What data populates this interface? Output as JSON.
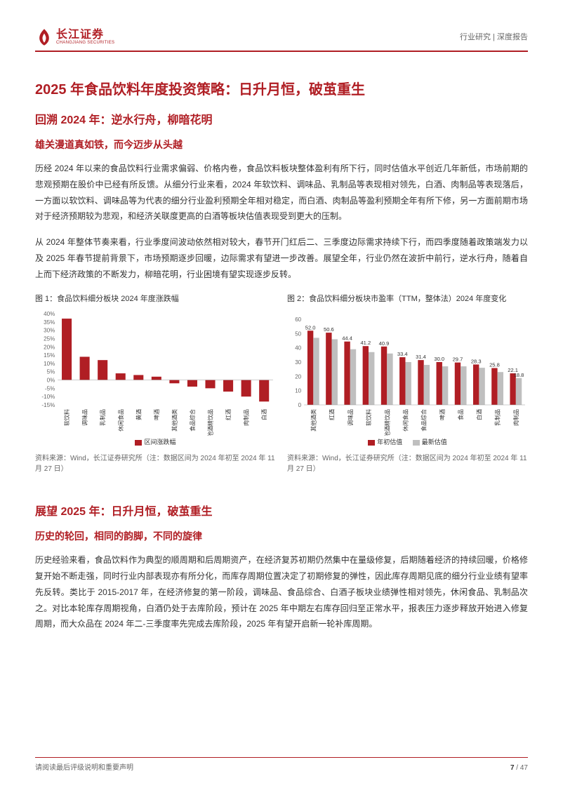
{
  "header": {
    "logo_cn": "长江证券",
    "logo_en": "CHANGJIANG SECURITIES",
    "right": "行业研究 | 深度报告"
  },
  "title_main": "2025 年食品饮料年度投资策略：日升月恒，破茧重生",
  "section1": {
    "sub1": "回溯 2024 年：逆水行舟，柳暗花明",
    "sub2": "雄关漫道真如铁，而今迈步从头越",
    "para1": "历经 2024 年以来的食品饮料行业需求偏弱、价格内卷，食品饮料板块整体盈利有所下行，同时估值水平创近几年新低，市场前期的悲观预期在股价中已经有所反馈。从细分行业来看，2024 年软饮料、调味品、乳制品等表现相对领先，白酒、肉制品等表现落后，一方面以软饮料、调味品等为代表的细分行业盈利预期全年相对稳定，而白酒、肉制品等盈利预期全年有所下修，另一方面前期市场对于经济预期较为悲观，和经济关联度更高的白酒等板块估值表现受到更大的压制。",
    "para2": "从 2024 年整体节奏来看，行业季度间波动依然相对较大，春节开门红后二、三季度边际需求持续下行，而四季度随着政策端发力以及 2025 年春节提前背景下，市场预期逐步回暖，边际需求有望进一步改善。展望全年，行业仍然在波折中前行，逆水行舟，随着自上而下经济政策的不断发力，柳暗花明，行业困境有望实现逐步反转。"
  },
  "chart1": {
    "title": "图 1：食品饮料细分板块 2024 年度涨跌幅",
    "type": "bar",
    "categories": [
      "软饮料",
      "调味品",
      "乳制品",
      "休闲食品",
      "黄酒",
      "啤酒",
      "其他酒类",
      "食品综合",
      "其他酒精饮品",
      "红酒",
      "肉制品",
      "白酒"
    ],
    "values": [
      37,
      14,
      12,
      4,
      3,
      2,
      -2,
      -4,
      -5,
      -7,
      -10,
      -13
    ],
    "ylim": [
      -15,
      40
    ],
    "ytick_step": 5,
    "bar_color": "#b01e24",
    "legend": "区间涨跌幅",
    "source": "资料来源：Wind，长江证券研究所（注：数据区间为 2024 年初至 2024 年 11 月 27 日）"
  },
  "chart2": {
    "title": "图 2：食品饮料细分板块市盈率（TTM，整体法）2024 年度变化",
    "type": "grouped-bar",
    "categories": [
      "其他酒类",
      "红酒",
      "调味品",
      "软饮料",
      "其他酒精饮品",
      "休闲食品",
      "食品综合",
      "啤酒",
      "食品",
      "白酒",
      "乳制品",
      "肉制品"
    ],
    "series": [
      {
        "name": "年初估值",
        "color": "#b01e24",
        "values": [
          52.0,
          50.6,
          44.4,
          41.2,
          40.9,
          33.4,
          31.4,
          30.0,
          29.7,
          28.3,
          25.8,
          22.1
        ]
      },
      {
        "name": "最新估值",
        "color": "#bfbfbf",
        "values": [
          47,
          46,
          39,
          37,
          36,
          30,
          28,
          27,
          27,
          26,
          23,
          18.8
        ]
      }
    ],
    "ylim": [
      0,
      60
    ],
    "ytick_step": 10,
    "source": "资料来源：Wind，长江证券研究所（注：数据区间为 2024 年初至 2024 年 11 月 27 日）"
  },
  "section2": {
    "sub1": "展望 2025 年：日升月恒，破茧重生",
    "sub2": "历史的轮回，相同的韵脚，不同的旋律",
    "para1": "历史经验来看，食品饮料作为典型的顺周期和后周期资产，在经济复苏初期仍然集中在量级修复，后期随着经济的持续回暖，价格修复开始不断走强，同时行业内部表现亦有所分化，而库存周期位置决定了初期修复的弹性，因此库存周期见底的细分行业业绩有望率先反转。类比于 2015-2017 年，在经济修复的第一阶段，调味品、食品综合、白酒子板块业绩弹性相对领先，休闲食品、乳制品次之。对比本轮库存周期视角，白酒仍处于去库阶段，预计在 2025 年中期左右库存回归至正常水平，报表压力逐步释放开始进入修复周期，而大众品在 2024 年二-三季度率先完成去库阶段，2025 年有望开启新一轮补库周期。"
  },
  "footer": {
    "left": "请阅读最后评级说明和重要声明",
    "page_current": "7",
    "page_total": "47"
  }
}
